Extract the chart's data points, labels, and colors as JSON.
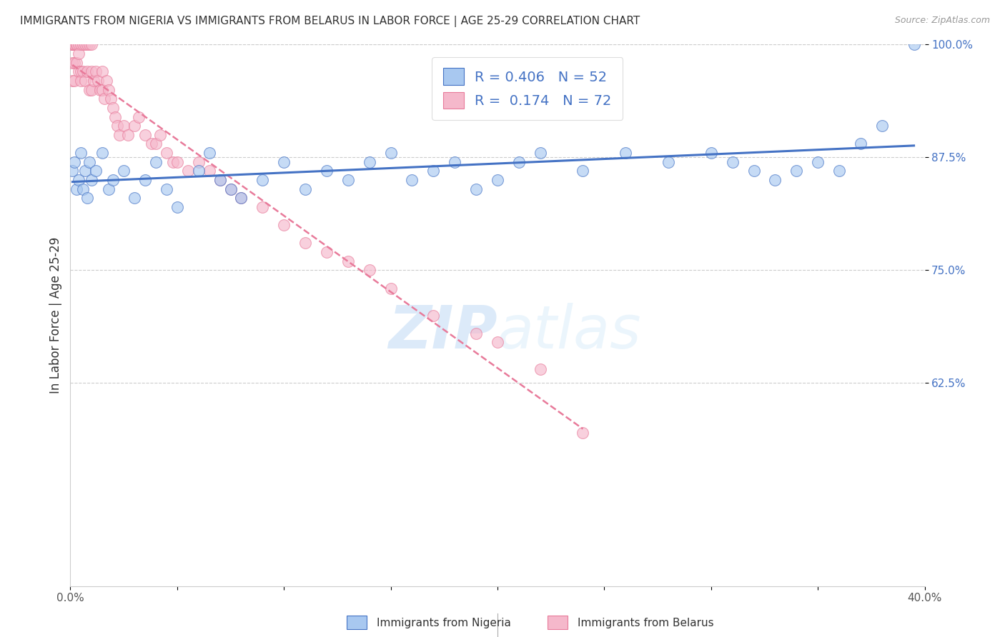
{
  "title": "IMMIGRANTS FROM NIGERIA VS IMMIGRANTS FROM BELARUS IN LABOR FORCE | AGE 25-29 CORRELATION CHART",
  "source": "Source: ZipAtlas.com",
  "ylabel": "In Labor Force | Age 25-29",
  "watermark": "ZIPatlas",
  "legend_nigeria": "Immigrants from Nigeria",
  "legend_belarus": "Immigrants from Belarus",
  "R_nigeria": 0.406,
  "N_nigeria": 52,
  "R_belarus": 0.174,
  "N_belarus": 72,
  "xlim": [
    0.0,
    0.4
  ],
  "ylim": [
    0.4,
    1.0
  ],
  "yticks": [
    0.625,
    0.75,
    0.875,
    1.0
  ],
  "ytick_labels": [
    "62.5%",
    "75.0%",
    "87.5%",
    "100.0%"
  ],
  "xticks": [
    0.0,
    0.05,
    0.1,
    0.15,
    0.2,
    0.25,
    0.3,
    0.35,
    0.4
  ],
  "xtick_labels": [
    "0.0%",
    "",
    "",
    "",
    "",
    "",
    "",
    "",
    "40.0%"
  ],
  "color_nigeria": "#a8c8f0",
  "color_belarus": "#f5b8cb",
  "line_color_nigeria": "#4472c4",
  "line_color_belarus": "#e87a9a",
  "nigeria_x": [
    0.001,
    0.002,
    0.003,
    0.004,
    0.005,
    0.006,
    0.007,
    0.008,
    0.009,
    0.01,
    0.012,
    0.015,
    0.018,
    0.02,
    0.025,
    0.03,
    0.035,
    0.04,
    0.045,
    0.05,
    0.06,
    0.065,
    0.07,
    0.075,
    0.08,
    0.09,
    0.1,
    0.11,
    0.12,
    0.13,
    0.14,
    0.15,
    0.16,
    0.17,
    0.18,
    0.19,
    0.2,
    0.21,
    0.22,
    0.24,
    0.26,
    0.28,
    0.3,
    0.31,
    0.32,
    0.33,
    0.34,
    0.35,
    0.36,
    0.37,
    0.38,
    0.395
  ],
  "nigeria_y": [
    0.86,
    0.87,
    0.84,
    0.85,
    0.88,
    0.84,
    0.86,
    0.83,
    0.87,
    0.85,
    0.86,
    0.88,
    0.84,
    0.85,
    0.86,
    0.83,
    0.85,
    0.87,
    0.84,
    0.82,
    0.86,
    0.88,
    0.85,
    0.84,
    0.83,
    0.85,
    0.87,
    0.84,
    0.86,
    0.85,
    0.87,
    0.88,
    0.85,
    0.86,
    0.87,
    0.84,
    0.85,
    0.87,
    0.88,
    0.86,
    0.88,
    0.87,
    0.88,
    0.87,
    0.86,
    0.85,
    0.86,
    0.87,
    0.86,
    0.89,
    0.91,
    1.0
  ],
  "belarus_x": [
    0.001,
    0.001,
    0.001,
    0.001,
    0.001,
    0.002,
    0.002,
    0.002,
    0.002,
    0.003,
    0.003,
    0.003,
    0.004,
    0.004,
    0.004,
    0.005,
    0.005,
    0.005,
    0.006,
    0.006,
    0.007,
    0.007,
    0.008,
    0.008,
    0.009,
    0.009,
    0.01,
    0.01,
    0.01,
    0.011,
    0.012,
    0.013,
    0.014,
    0.015,
    0.015,
    0.016,
    0.017,
    0.018,
    0.019,
    0.02,
    0.021,
    0.022,
    0.023,
    0.025,
    0.027,
    0.03,
    0.032,
    0.035,
    0.038,
    0.04,
    0.042,
    0.045,
    0.048,
    0.05,
    0.055,
    0.06,
    0.065,
    0.07,
    0.075,
    0.08,
    0.09,
    0.1,
    0.11,
    0.12,
    0.13,
    0.14,
    0.15,
    0.17,
    0.19,
    0.2,
    0.22,
    0.24
  ],
  "belarus_y": [
    1.0,
    1.0,
    1.0,
    0.98,
    0.96,
    1.0,
    1.0,
    0.98,
    0.96,
    1.0,
    1.0,
    0.98,
    1.0,
    0.99,
    0.97,
    1.0,
    0.97,
    0.96,
    1.0,
    0.97,
    1.0,
    0.96,
    1.0,
    0.97,
    1.0,
    0.95,
    1.0,
    0.97,
    0.95,
    0.96,
    0.97,
    0.96,
    0.95,
    0.97,
    0.95,
    0.94,
    0.96,
    0.95,
    0.94,
    0.93,
    0.92,
    0.91,
    0.9,
    0.91,
    0.9,
    0.91,
    0.92,
    0.9,
    0.89,
    0.89,
    0.9,
    0.88,
    0.87,
    0.87,
    0.86,
    0.87,
    0.86,
    0.85,
    0.84,
    0.83,
    0.82,
    0.8,
    0.78,
    0.77,
    0.76,
    0.75,
    0.73,
    0.7,
    0.68,
    0.67,
    0.64,
    0.57
  ]
}
